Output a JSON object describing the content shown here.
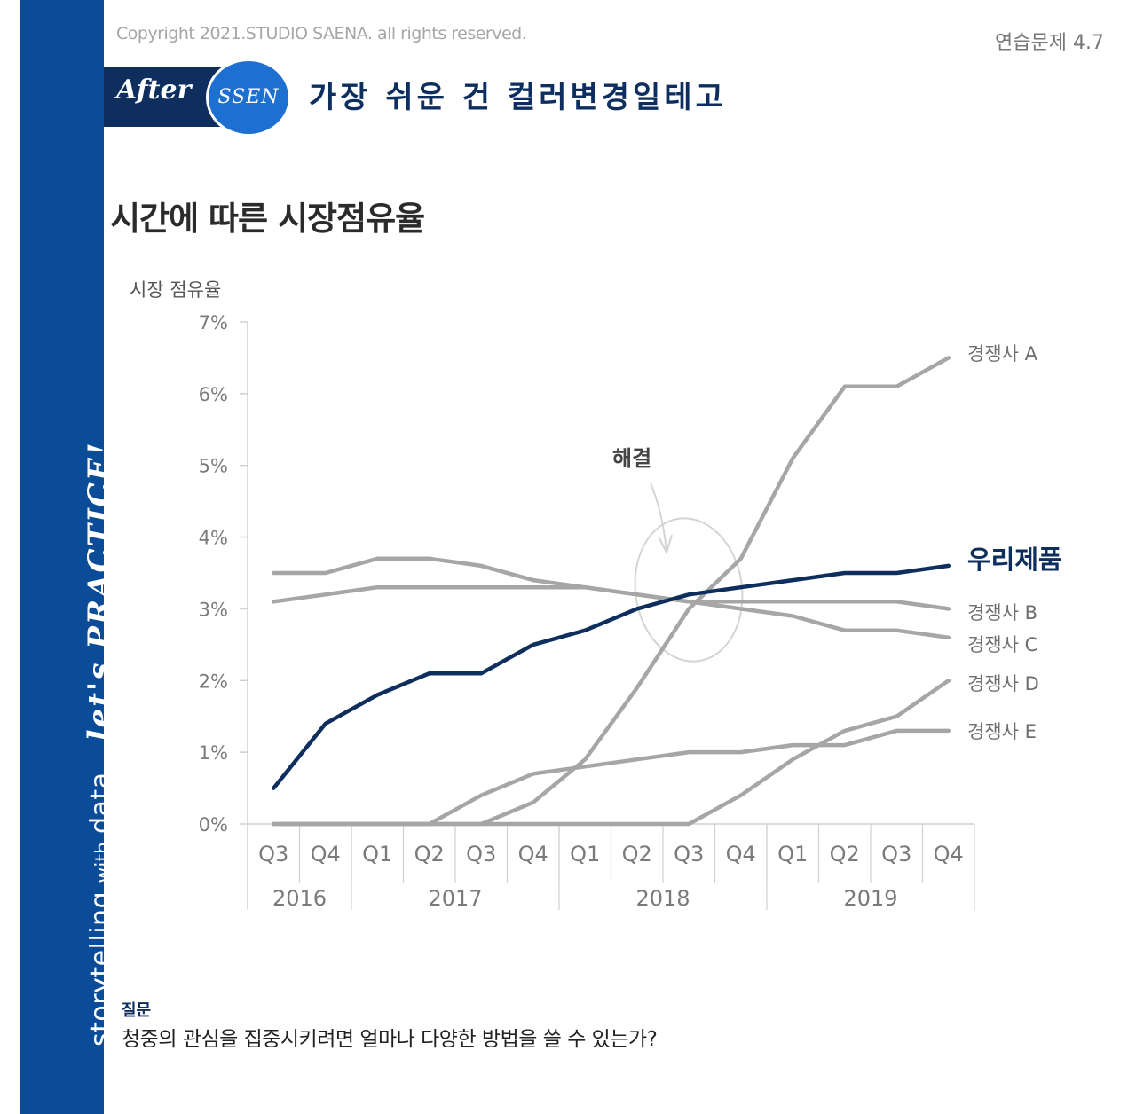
{
  "header": {
    "copyright": "Copyright 2021.STUDIO SAENA. all rights reserved.",
    "exercise": "연습문제 4.7",
    "after_label": "After",
    "ssen_label": "SSEN",
    "headline": "가장 쉬운 건 컬러변경일테고"
  },
  "sidebar": {
    "main": "storytelling",
    "small": "with",
    "data": "data",
    "practice": "let's PRACTICE!"
  },
  "question": {
    "label": "질문",
    "text": "청중의 관심을 집중시키려면 얼마나 다양한 방법을 쓸 수 있는가?"
  },
  "colors": {
    "accent": "#0e2f5e",
    "muted": "#a6a6a6",
    "sidebar": "#0a4c97"
  },
  "chart_data": {
    "type": "line",
    "title": "시간에 따른 시장점유율",
    "ylabel": "시장 점유율",
    "xlabel": "",
    "ylim": [
      0,
      7
    ],
    "yticks": [
      "0%",
      "1%",
      "2%",
      "3%",
      "4%",
      "5%",
      "6%",
      "7%"
    ],
    "categories": [
      "Q3",
      "Q4",
      "Q1",
      "Q2",
      "Q3",
      "Q4",
      "Q1",
      "Q2",
      "Q3",
      "Q4",
      "Q1",
      "Q2",
      "Q3",
      "Q4"
    ],
    "years": [
      {
        "label": "2016",
        "span": 2
      },
      {
        "label": "2017",
        "span": 4
      },
      {
        "label": "2018",
        "span": 4
      },
      {
        "label": "2019",
        "span": 4
      }
    ],
    "annotation": "해결",
    "series": [
      {
        "name": "우리제품",
        "highlight": true,
        "values": [
          0.5,
          1.4,
          1.8,
          2.1,
          2.1,
          2.5,
          2.7,
          3.0,
          3.2,
          3.3,
          3.4,
          3.5,
          3.5,
          3.6
        ]
      },
      {
        "name": "경쟁사 A",
        "highlight": false,
        "values": [
          0,
          0,
          0,
          0,
          0,
          0.3,
          0.9,
          1.9,
          3.0,
          3.7,
          5.1,
          6.1,
          6.1,
          6.5
        ]
      },
      {
        "name": "경쟁사 B",
        "highlight": false,
        "values": [
          3.1,
          3.2,
          3.3,
          3.3,
          3.3,
          3.3,
          3.3,
          3.2,
          3.1,
          3.1,
          3.1,
          3.1,
          3.1,
          3.0
        ]
      },
      {
        "name": "경쟁사 C",
        "highlight": false,
        "values": [
          3.5,
          3.5,
          3.7,
          3.7,
          3.6,
          3.4,
          3.3,
          3.2,
          3.1,
          3.0,
          2.9,
          2.7,
          2.7,
          2.6
        ]
      },
      {
        "name": "경쟁사 D",
        "highlight": false,
        "values": [
          0,
          0,
          0,
          0,
          0,
          0,
          0,
          0,
          0,
          0.4,
          0.9,
          1.3,
          1.5,
          2.0
        ]
      },
      {
        "name": "경쟁사 E",
        "highlight": false,
        "values": [
          0,
          0,
          0,
          0,
          0.4,
          0.7,
          0.8,
          0.9,
          1.0,
          1.0,
          1.1,
          1.1,
          1.3,
          1.3
        ]
      }
    ]
  }
}
